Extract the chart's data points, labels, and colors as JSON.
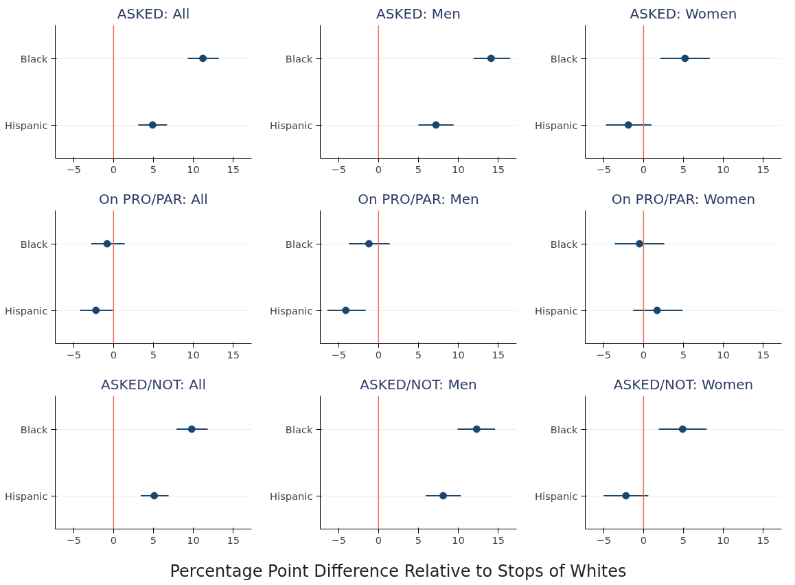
{
  "chart_data": [
    {
      "type": "scatter",
      "orientation": "horizontal",
      "title": "ASKED: All",
      "categories": [
        "Black",
        "Hispanic"
      ],
      "values": [
        11.2,
        4.9
      ],
      "errors": [
        [
          9.3,
          13.2
        ],
        [
          3.1,
          6.7
        ]
      ],
      "color": "#1a476f",
      "xlim": [
        -7.3,
        17.3
      ],
      "xticks": [
        -5,
        0,
        5,
        10,
        15
      ],
      "ref_lines": [
        {
          "axis": "x",
          "value": 0,
          "color": "#e8704e"
        }
      ],
      "grid": "y",
      "marker": "circle"
    },
    {
      "type": "scatter",
      "orientation": "horizontal",
      "title": "ASKED: Men",
      "categories": [
        "Black",
        "Hispanic"
      ],
      "values": [
        14.1,
        7.2
      ],
      "errors": [
        [
          11.9,
          16.5
        ],
        [
          5.0,
          9.4
        ]
      ],
      "color": "#1a476f",
      "xlim": [
        -7.3,
        17.3
      ],
      "xticks": [
        -5,
        0,
        5,
        10,
        15
      ],
      "ref_lines": [
        {
          "axis": "x",
          "value": 0,
          "color": "#e8704e"
        }
      ],
      "grid": "y",
      "marker": "circle"
    },
    {
      "type": "scatter",
      "orientation": "horizontal",
      "title": "ASKED: Women",
      "categories": [
        "Black",
        "Hispanic"
      ],
      "values": [
        5.2,
        -1.9
      ],
      "errors": [
        [
          2.1,
          8.3
        ],
        [
          -4.7,
          1.0
        ]
      ],
      "color": "#1a476f",
      "xlim": [
        -7.3,
        17.3
      ],
      "xticks": [
        -5,
        0,
        5,
        10,
        15
      ],
      "ref_lines": [
        {
          "axis": "x",
          "value": 0,
          "color": "#e8704e"
        }
      ],
      "grid": "y",
      "marker": "circle"
    },
    {
      "type": "scatter",
      "orientation": "horizontal",
      "title": "On PRO/PAR: All",
      "categories": [
        "Black",
        "Hispanic"
      ],
      "values": [
        -0.8,
        -2.2
      ],
      "errors": [
        [
          -2.8,
          1.4
        ],
        [
          -4.2,
          -0.1
        ]
      ],
      "color": "#1a476f",
      "xlim": [
        -7.3,
        17.3
      ],
      "xticks": [
        -5,
        0,
        5,
        10,
        15
      ],
      "ref_lines": [
        {
          "axis": "x",
          "value": 0,
          "color": "#e8704e"
        }
      ],
      "grid": "y",
      "marker": "circle"
    },
    {
      "type": "scatter",
      "orientation": "horizontal",
      "title": "On PRO/PAR: Men",
      "categories": [
        "Black",
        "Hispanic"
      ],
      "values": [
        -1.2,
        -4.1
      ],
      "errors": [
        [
          -3.7,
          1.4
        ],
        [
          -6.4,
          -1.6
        ]
      ],
      "color": "#1a476f",
      "xlim": [
        -7.3,
        17.3
      ],
      "xticks": [
        -5,
        0,
        5,
        10,
        15
      ],
      "ref_lines": [
        {
          "axis": "x",
          "value": 0,
          "color": "#e8704e"
        }
      ],
      "grid": "y",
      "marker": "circle"
    },
    {
      "type": "scatter",
      "orientation": "horizontal",
      "title": "On PRO/PAR: Women",
      "categories": [
        "Black",
        "Hispanic"
      ],
      "values": [
        -0.5,
        1.7
      ],
      "errors": [
        [
          -3.6,
          2.6
        ],
        [
          -1.3,
          4.9
        ]
      ],
      "color": "#1a476f",
      "xlim": [
        -7.3,
        17.3
      ],
      "xticks": [
        -5,
        0,
        5,
        10,
        15
      ],
      "ref_lines": [
        {
          "axis": "x",
          "value": 0,
          "color": "#e8704e"
        }
      ],
      "grid": "y",
      "marker": "circle"
    },
    {
      "type": "scatter",
      "orientation": "horizontal",
      "title": "ASKED/NOT: All",
      "categories": [
        "Black",
        "Hispanic"
      ],
      "values": [
        9.8,
        5.1
      ],
      "errors": [
        [
          7.9,
          11.8
        ],
        [
          3.4,
          6.9
        ]
      ],
      "color": "#1a476f",
      "xlim": [
        -7.3,
        17.3
      ],
      "xticks": [
        -5,
        0,
        5,
        10,
        15
      ],
      "ref_lines": [
        {
          "axis": "x",
          "value": 0,
          "color": "#e8704e"
        }
      ],
      "grid": "y",
      "marker": "circle"
    },
    {
      "type": "scatter",
      "orientation": "horizontal",
      "title": "ASKED/NOT: Men",
      "categories": [
        "Black",
        "Hispanic"
      ],
      "values": [
        12.3,
        8.1
      ],
      "errors": [
        [
          9.9,
          14.6
        ],
        [
          5.9,
          10.3
        ]
      ],
      "color": "#1a476f",
      "xlim": [
        -7.3,
        17.3
      ],
      "xticks": [
        -5,
        0,
        5,
        10,
        15
      ],
      "ref_lines": [
        {
          "axis": "x",
          "value": 0,
          "color": "#e8704e"
        }
      ],
      "grid": "y",
      "marker": "circle",
      "xlabel": "Percentage Point Difference Relative to Stops of Whites"
    },
    {
      "type": "scatter",
      "orientation": "horizontal",
      "title": "ASKED/NOT: Women",
      "categories": [
        "Black",
        "Hispanic"
      ],
      "values": [
        4.9,
        -2.2
      ],
      "errors": [
        [
          1.9,
          7.9
        ],
        [
          -5.0,
          0.6
        ]
      ],
      "color": "#1a476f",
      "xlim": [
        -7.3,
        17.3
      ],
      "xticks": [
        -5,
        0,
        5,
        10,
        15
      ],
      "ref_lines": [
        {
          "axis": "x",
          "value": 0,
          "color": "#e8704e"
        }
      ],
      "grid": "y",
      "marker": "circle"
    }
  ]
}
